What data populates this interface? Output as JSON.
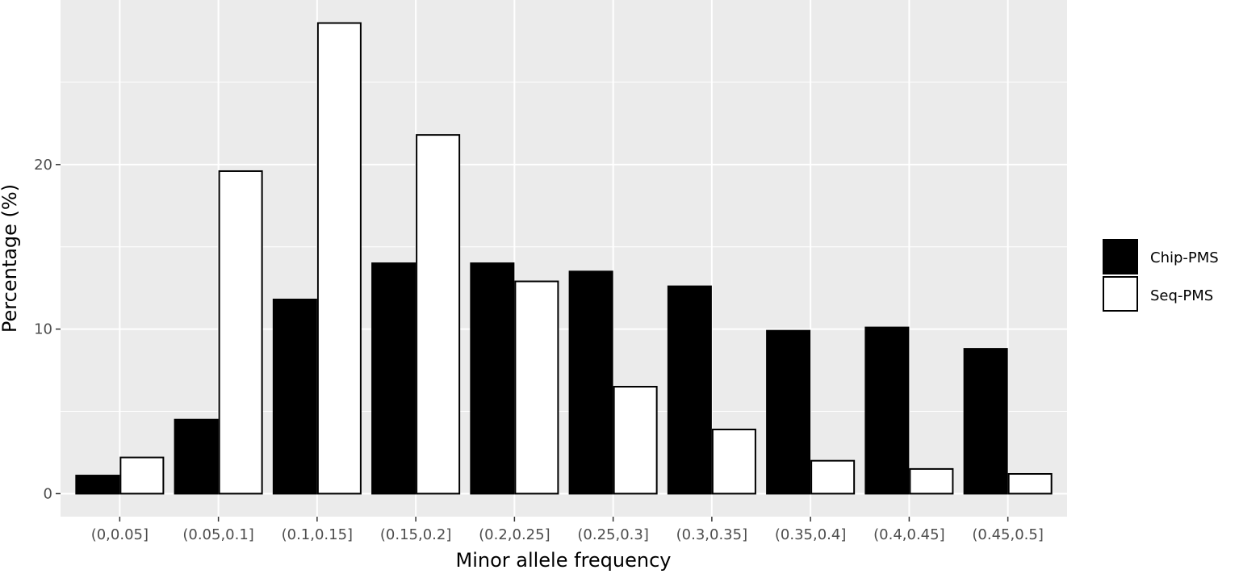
{
  "chart_data": {
    "type": "bar",
    "title": "",
    "xlabel": "Minor allele frequency",
    "ylabel": "Percentage (%)",
    "categories": [
      "(0,0.05]",
      "(0.05,0.1]",
      "(0.1,0.15]",
      "(0.15,0.2]",
      "(0.2,0.25]",
      "(0.25,0.3]",
      "(0.3,0.35]",
      "(0.35,0.4]",
      "(0.4,0.45]",
      "(0.45,0.5]"
    ],
    "series": [
      {
        "name": "Chip-PMS",
        "color": "#000000",
        "values": [
          1.1,
          4.5,
          11.8,
          14.0,
          14.0,
          13.5,
          12.6,
          9.9,
          10.1,
          8.8
        ]
      },
      {
        "name": "Seq-PMS",
        "color": "#ffffff",
        "values": [
          2.2,
          19.6,
          28.6,
          21.8,
          12.9,
          6.5,
          3.9,
          2.0,
          1.5,
          1.2
        ]
      }
    ],
    "ylim": [
      -1.4,
      30.0
    ],
    "yticks": [
      0,
      10,
      20
    ],
    "ytick_labels": [
      "0",
      "10",
      "20"
    ],
    "grid": true,
    "panel_background": "#ebebeb",
    "legend": {
      "position": "right",
      "entries": [
        "Chip-PMS",
        "Seq-PMS"
      ]
    }
  }
}
